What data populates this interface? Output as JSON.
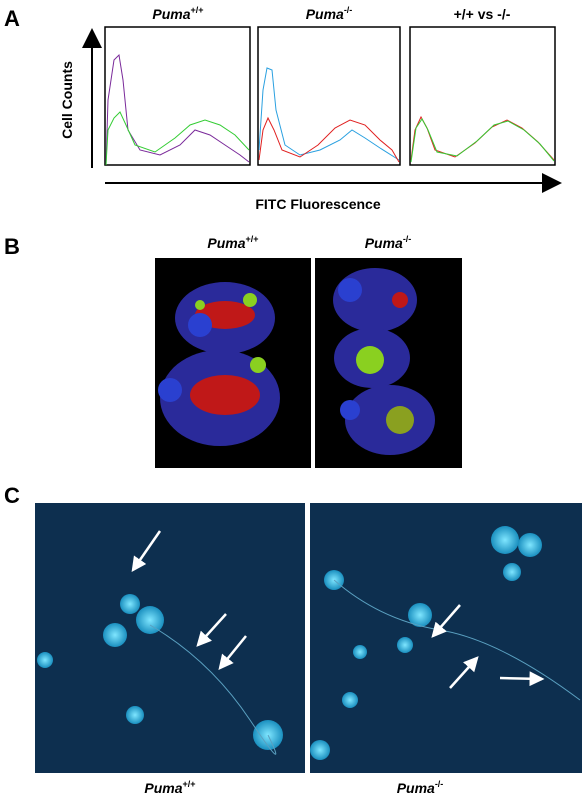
{
  "panel_a": {
    "letter": "A",
    "titles": [
      {
        "name": "Puma",
        "sup": "+/+"
      },
      {
        "name": "Puma",
        "sup": "-/-"
      },
      {
        "text": "+/+ vs -/-"
      }
    ],
    "y_label": "Cell Counts",
    "x_label": "FITC Fluorescence"
  },
  "panel_b": {
    "letter": "B",
    "titles": [
      {
        "name": "Puma",
        "sup": "+/+"
      },
      {
        "name": "Puma",
        "sup": "-/-"
      }
    ]
  },
  "panel_c": {
    "letter": "C",
    "titles": [
      {
        "name": "Puma",
        "sup": "+/+"
      },
      {
        "name": "Puma",
        "sup": "-/-"
      }
    ]
  }
}
